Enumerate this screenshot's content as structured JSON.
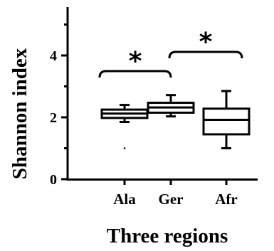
{
  "chart_data": {
    "type": "box",
    "categories": [
      "Ala",
      "Ger",
      "Afr"
    ],
    "series": [
      {
        "boxes": [
          {
            "category": "Ala",
            "min": 1.85,
            "q1": 1.98,
            "median": 2.12,
            "q3": 2.25,
            "max": 2.4,
            "outliers": [
              1.0
            ]
          },
          {
            "category": "Ger",
            "min": 2.03,
            "q1": 2.15,
            "median": 2.32,
            "q3": 2.47,
            "max": 2.72,
            "outliers": []
          },
          {
            "category": "Afr",
            "min": 1.0,
            "q1": 1.45,
            "median": 1.92,
            "q3": 2.28,
            "max": 2.85,
            "outliers": []
          }
        ]
      }
    ],
    "ylabel": "Shannon index",
    "xlabel": "Three regions",
    "ylim": [
      0,
      5.4
    ],
    "yticks": [
      "0",
      "2",
      "4"
    ],
    "grid": false,
    "significance": [
      {
        "from": "Ala",
        "to": "Ger",
        "label": "*"
      },
      {
        "from": "Ger",
        "to": "Afr",
        "label": "*"
      }
    ]
  }
}
